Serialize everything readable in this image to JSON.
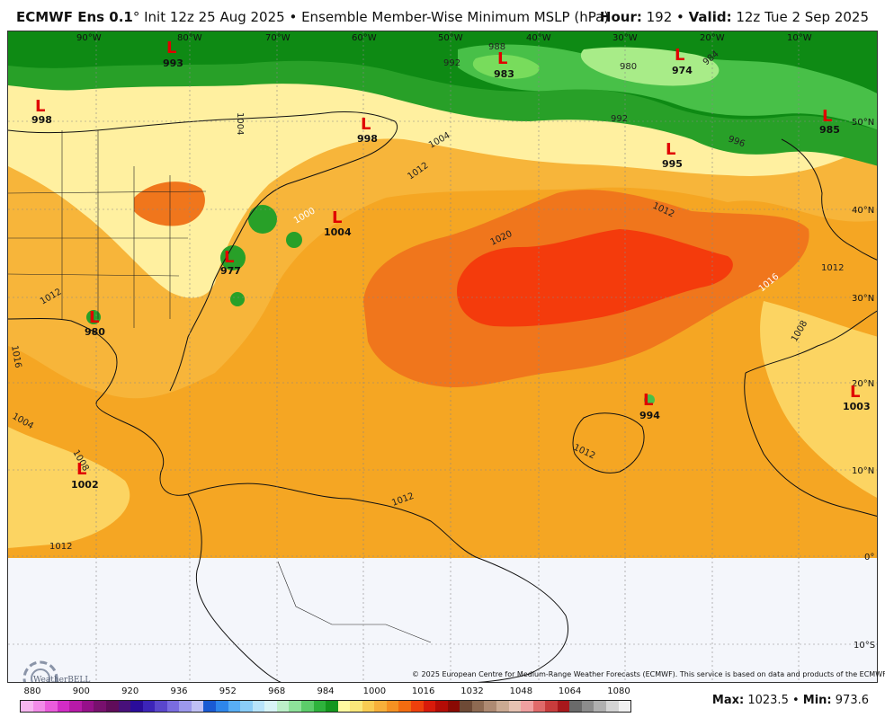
{
  "header": {
    "model": "ECMWF Ens 0.1",
    "degree": "°",
    "init": " Init 12z 25 Aug 2025",
    "separator": " • ",
    "product": "Ensemble Member-Wise Minimum MSLP (hPa)",
    "hour_label": "Hour:",
    "hour_value": " 192",
    "valid_label": "Valid:",
    "valid_value": " 12z Tue 2 Sep 2025"
  },
  "map": {
    "longitude_labels": [
      "90°W",
      "80°W",
      "70°W",
      "60°W",
      "50°W",
      "40°W",
      "30°W",
      "20°W",
      "10°W"
    ],
    "latitude_labels": [
      "50°N",
      "40°N",
      "30°N",
      "20°N",
      "10°N",
      "0°",
      "10°S"
    ],
    "lows": [
      {
        "letter": "L",
        "value": "993"
      },
      {
        "letter": "L",
        "value": "998"
      },
      {
        "letter": "L",
        "value": "998"
      },
      {
        "letter": "L",
        "value": "983"
      },
      {
        "letter": "L",
        "value": "974"
      },
      {
        "letter": "L",
        "value": "985"
      },
      {
        "letter": "L",
        "value": "995"
      },
      {
        "letter": "L",
        "value": "1004"
      },
      {
        "letter": "L",
        "value": "977"
      },
      {
        "letter": "L",
        "value": "980"
      },
      {
        "letter": "L",
        "value": "994"
      },
      {
        "letter": "L",
        "value": "1003"
      },
      {
        "letter": "L",
        "value": "1002"
      }
    ],
    "isobar_labels": [
      "1020",
      "1016",
      "1012",
      "1012",
      "1012",
      "1012",
      "1012",
      "1012",
      "1008",
      "1008",
      "1004",
      "1004",
      "1000",
      "996",
      "992",
      "992",
      "988",
      "984",
      "980",
      "1016",
      "1004",
      "1012"
    ],
    "colors": {
      "ocean_1016": "#f5a623",
      "band_1012": "#f7b53a",
      "band_1008": "#fcd462",
      "band_1004": "#fff0a0",
      "band_1020": "#f0761c",
      "band_1022": "#f43b0c",
      "green_1000": "#28a028",
      "green_996": "#0e8a14",
      "green_992": "#48c048",
      "green_988": "#78dc5c",
      "green_984": "#a8ec88",
      "south_blank": "#f4f6fb"
    }
  },
  "copyright": "© 2025 European Centre for Medium-Range Weather Forecasts (ECMWF). This service is based on data and products of the ECMWF.",
  "logo_text": "WeatherBELL",
  "colorbar": {
    "labels": [
      "880",
      "900",
      "920",
      "936",
      "952",
      "968",
      "984",
      "1000",
      "1016",
      "1032",
      "1048",
      "1064",
      "1080"
    ],
    "colors": [
      "#f7b6f0",
      "#f28ce8",
      "#ea5cdc",
      "#d22cc6",
      "#b81aa8",
      "#96108a",
      "#78106e",
      "#600c5a",
      "#48107a",
      "#2a0c9a",
      "#3c24b8",
      "#5a46cc",
      "#7a6ce0",
      "#9c98ec",
      "#c0c0f4",
      "#1a5ad2",
      "#2e86ea",
      "#58aef4",
      "#8acdf8",
      "#b8e4fa",
      "#d8f4f6",
      "#bcf0c8",
      "#8ee29a",
      "#5ccc6a",
      "#2eb23c",
      "#14961e",
      "#fffaa0",
      "#fbe87a",
      "#f9cc52",
      "#f7b03a",
      "#f59122",
      "#f26c10",
      "#ee400c",
      "#d81a0a",
      "#b40c06",
      "#8a0a04",
      "#6e4a36",
      "#8e6a52",
      "#ae8a72",
      "#cbaa92",
      "#e6c2b2",
      "#f0a0a0",
      "#e06a6a",
      "#c83c3c",
      "#a8181c",
      "#6a6a6a",
      "#8c8c8c",
      "#b0b0b0",
      "#d4d4d4",
      "#f0f0f0"
    ]
  },
  "stats": {
    "max_label": "Max:",
    "max_value": " 1023.5",
    "sep": " • ",
    "min_label": "Min:",
    "min_value": " 973.6"
  }
}
